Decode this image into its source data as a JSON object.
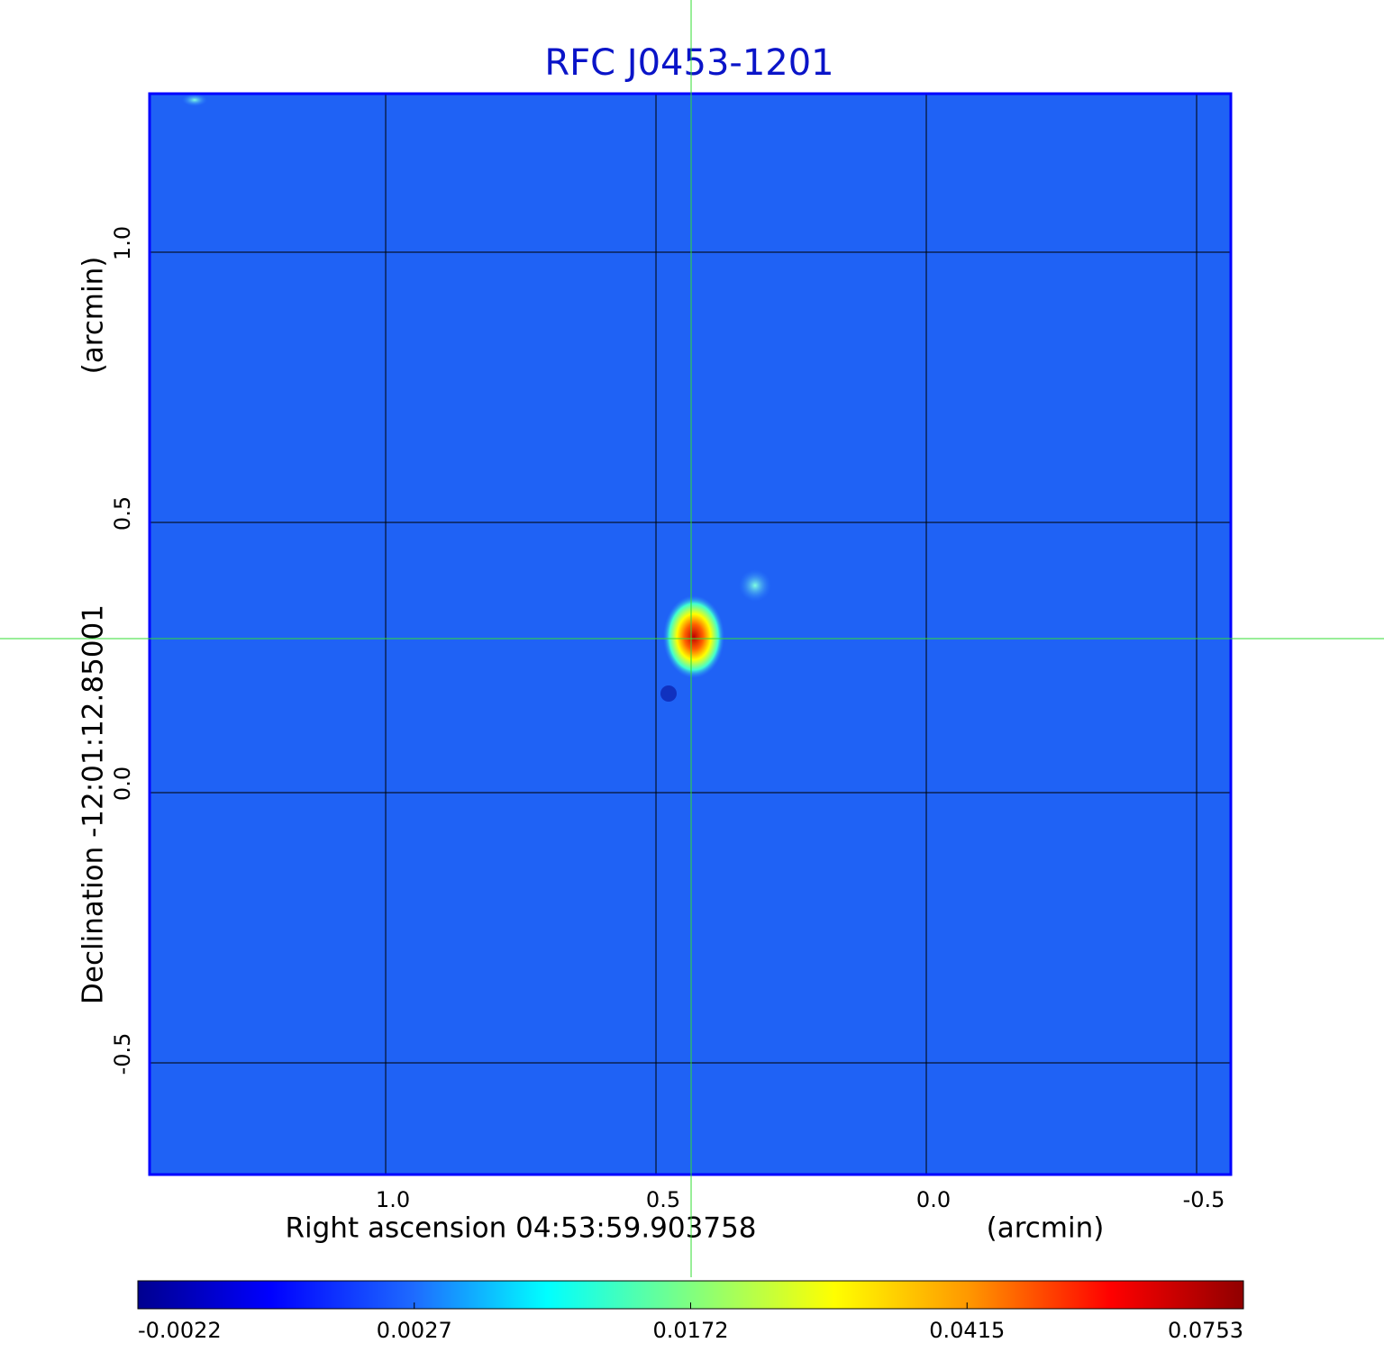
{
  "chart_data": {
    "type": "image",
    "title": "RFC J0453-1201",
    "x_label": "Right ascension  04:53:59.903758",
    "x_unit": "(arcmin)",
    "y_label": "Declination  -12:01:12.85001",
    "y_unit": "(arcmin)",
    "xlim": [
      1.4367,
      -0.5633
    ],
    "ylim": [
      -0.7067,
      1.2933
    ],
    "xticks": [
      {
        "value": 1.0,
        "label": "1.0"
      },
      {
        "value": 0.5,
        "label": "0.5"
      },
      {
        "value": 0.0,
        "label": "0.0"
      },
      {
        "value": -0.5,
        "label": "-0.5"
      }
    ],
    "yticks": [
      {
        "value": -0.5,
        "label": "-0.5"
      },
      {
        "value": 0.0,
        "label": "0.0"
      },
      {
        "value": 0.5,
        "label": "0.5"
      },
      {
        "value": 1.0,
        "label": "1.0"
      }
    ],
    "grid": true,
    "crosshair": {
      "x": 0.435,
      "y": 0.285,
      "color": "#33dd33"
    },
    "colorbar_ticks": [
      -0.0022,
      0.0027,
      0.0172,
      0.0415,
      0.0753
    ],
    "colormap": "jet"
  }
}
